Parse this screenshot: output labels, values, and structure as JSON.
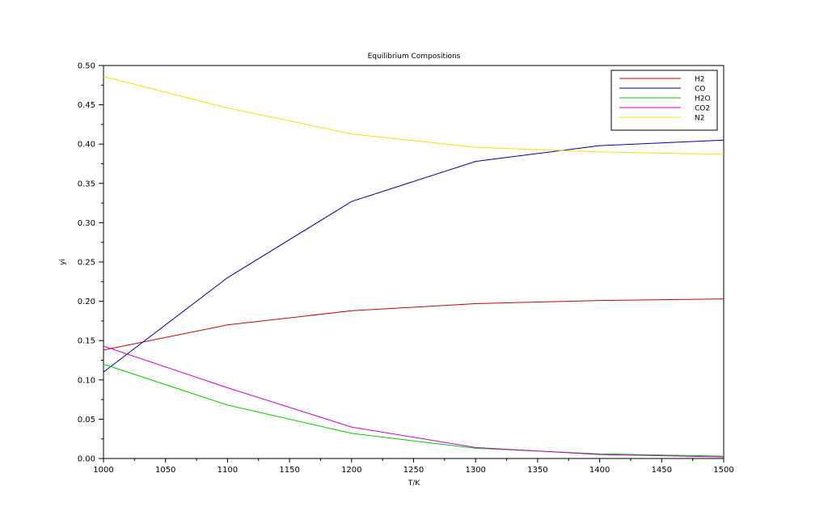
{
  "chart_data": {
    "type": "line",
    "title": "Equilibrium Compositions",
    "xlabel": "T/K",
    "ylabel": "yi",
    "xlim": [
      1000,
      1500
    ],
    "ylim": [
      0,
      0.5
    ],
    "x_ticks": [
      "1000",
      "1050",
      "1100",
      "1150",
      "1200",
      "1250",
      "1300",
      "1350",
      "1400",
      "1450",
      "1500"
    ],
    "y_ticks": [
      "0.00",
      "0.05",
      "0.10",
      "0.15",
      "0.20",
      "0.25",
      "0.30",
      "0.35",
      "0.40",
      "0.45",
      "0.50"
    ],
    "grid": false,
    "legend_position": "top-right",
    "x": [
      1000,
      1100,
      1200,
      1300,
      1400,
      1500
    ],
    "series": [
      {
        "name": "H2",
        "color": "#cc0000",
        "values": [
          0.138,
          0.17,
          0.188,
          0.197,
          0.201,
          0.203
        ]
      },
      {
        "name": "CO",
        "color": "#000099",
        "values": [
          0.11,
          0.23,
          0.327,
          0.378,
          0.398,
          0.405
        ]
      },
      {
        "name": "H2O",
        "color": "#00cc00",
        "values": [
          0.12,
          0.068,
          0.032,
          0.013,
          0.006,
          0.003
        ]
      },
      {
        "name": "CO2",
        "color": "#cc00cc",
        "values": [
          0.143,
          0.09,
          0.04,
          0.014,
          0.005,
          0.002
        ]
      },
      {
        "name": "N2",
        "color": "#ffdd00",
        "values": [
          0.486,
          0.446,
          0.413,
          0.396,
          0.39,
          0.387
        ]
      }
    ]
  }
}
